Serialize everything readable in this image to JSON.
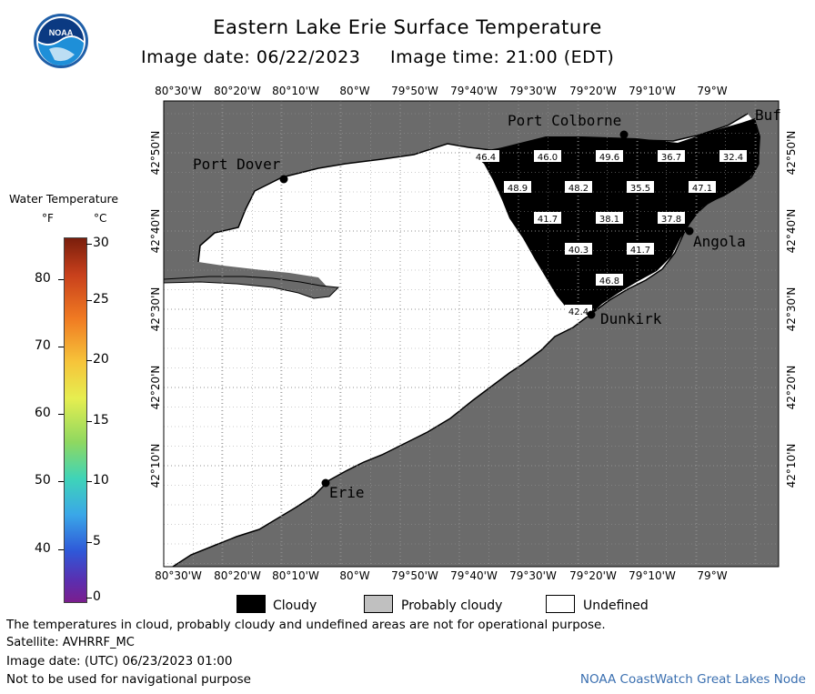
{
  "header": {
    "title": "Eastern Lake Erie Surface Temperature",
    "subtitle": "Image date: 06/22/2023     Image time: 21:00 (EDT)",
    "logo_text": "NOAA"
  },
  "legend": {
    "title": "Water Temperature",
    "unit_f": "°F",
    "unit_c": "°C",
    "f_ticks": [
      "80",
      "70",
      "60",
      "50",
      "40"
    ],
    "c_ticks": [
      "30",
      "25",
      "20",
      "15",
      "10",
      "5",
      "0"
    ]
  },
  "map": {
    "top_lon_labels": [
      "80°30'W",
      "80°20'W",
      "80°10'W",
      "80°W",
      "79°50'W",
      "79°40'W",
      "79°30'W",
      "79°20'W",
      "79°10'W",
      "79°W"
    ],
    "bottom_lon_labels": [
      "80°30'W",
      "80°20'W",
      "80°10'W",
      "80°W",
      "79°50'W",
      "79°40'W",
      "79°30'W",
      "79°20'W",
      "79°10'W",
      "79°W"
    ],
    "left_lat_labels": [
      "42°50'N",
      "42°40'N",
      "42°30'N",
      "42°20'N",
      "42°10'N"
    ],
    "right_lat_labels": [
      "42°50'N",
      "42°40'N",
      "42°30'N",
      "42°20'N",
      "42°10'N"
    ],
    "places": [
      {
        "name": "Port Colborne"
      },
      {
        "name": "Port Dover"
      },
      {
        "name": "Angola"
      },
      {
        "name": "Dunkirk"
      },
      {
        "name": "Erie"
      },
      {
        "name": "Buf"
      }
    ],
    "temperatures": [
      "46.4",
      "46.0",
      "49.6",
      "36.7",
      "32.4",
      "48.9",
      "48.2",
      "35.5",
      "47.1",
      "41.7",
      "38.1",
      "37.8",
      "40.3",
      "41.7",
      "46.8",
      "42.4"
    ],
    "colors": {
      "land": "#6b6b6b",
      "cloud": "#000000",
      "undefined": "#ffffff",
      "probably_cloudy": "#c0c0c0"
    }
  },
  "key": {
    "cloudy": "Cloudy",
    "probably_cloudy": "Probably cloudy",
    "undefined": "Undefined"
  },
  "footer": {
    "disclaimer": "The temperatures in cloud, probably cloudy and undefined areas are not for operational purpose.",
    "satellite": "Satellite: AVHRRF_MC",
    "image_date": "Image date: (UTC) 06/23/2023  01:00",
    "nav_warning": "Not to be used for navigational purpose",
    "credit": "NOAA CoastWatch Great Lakes Node"
  }
}
